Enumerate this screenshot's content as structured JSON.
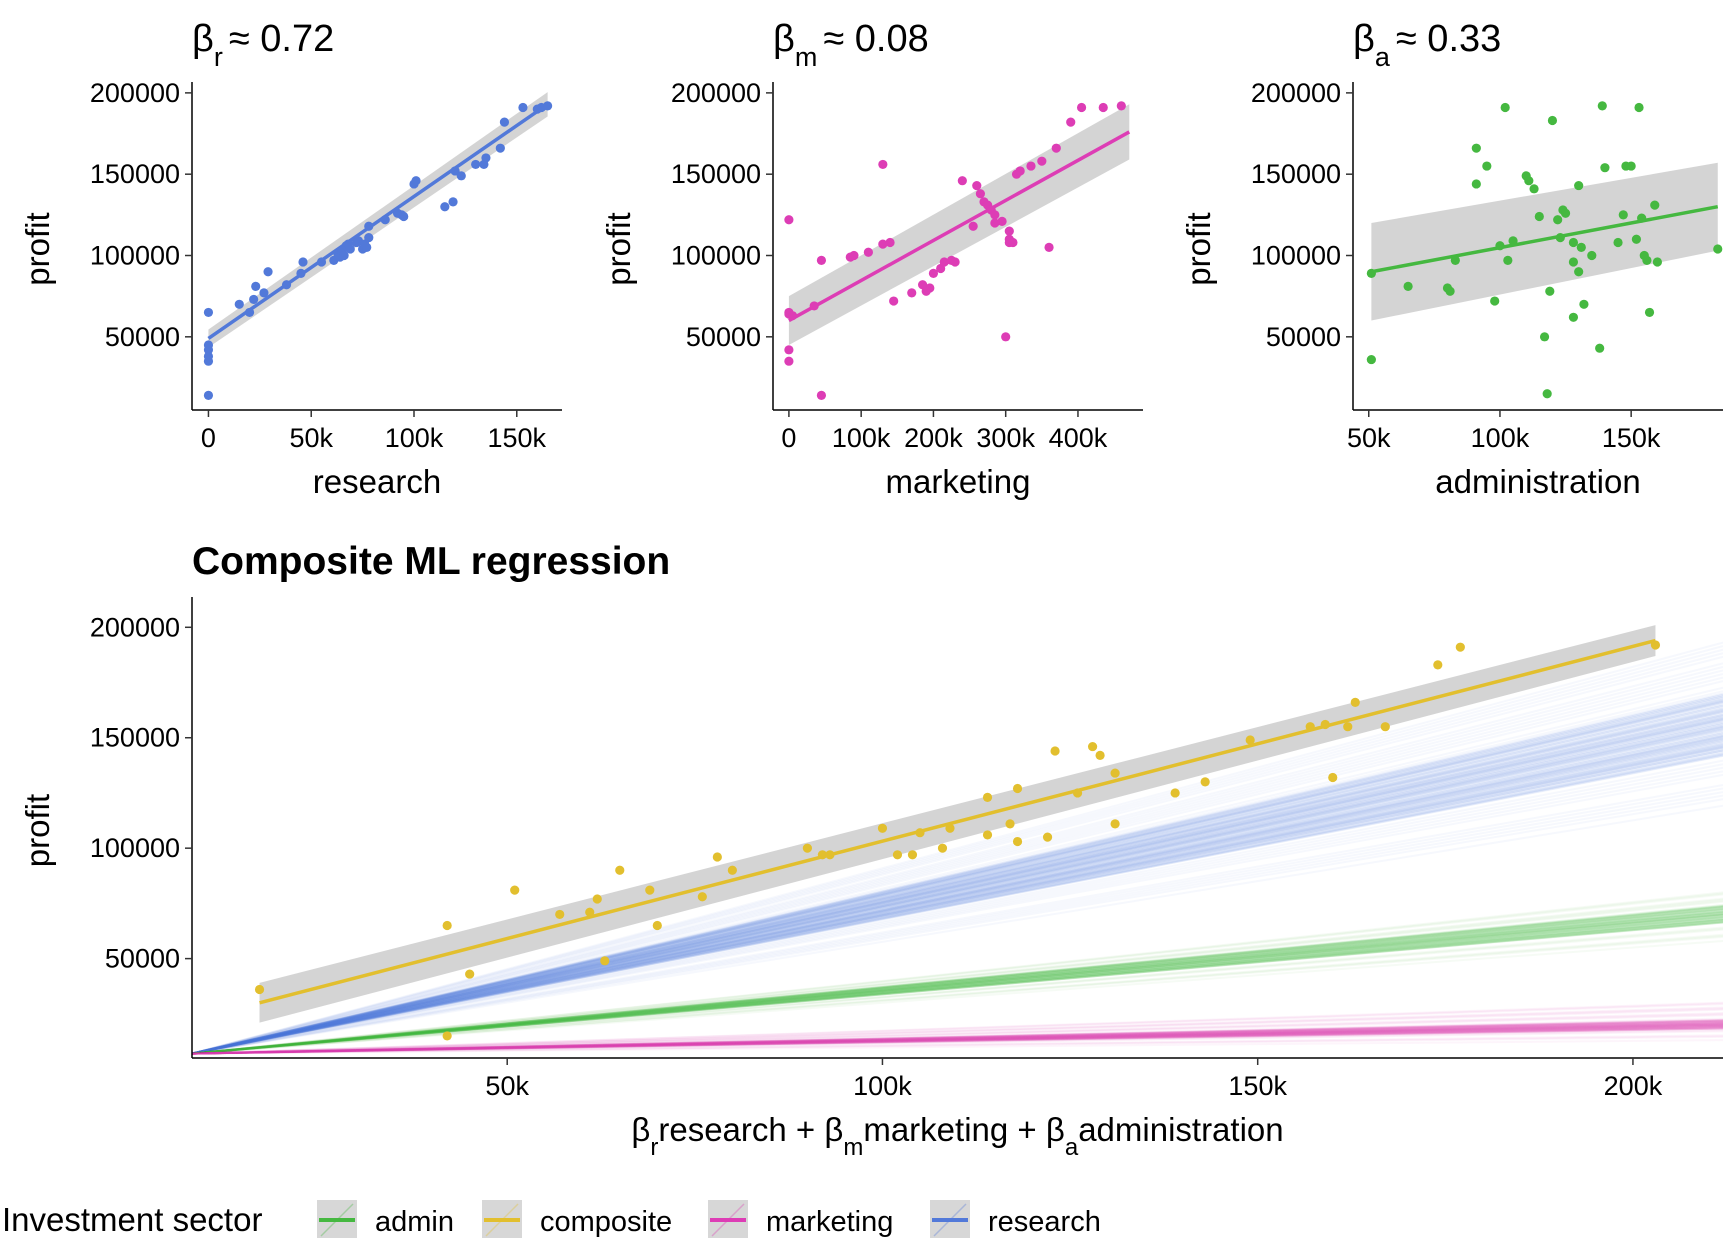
{
  "colors": {
    "research": "#5279D9",
    "marketing": "#DD3DB5",
    "admin": "#45B840",
    "composite": "#E2BF2E",
    "band": "#bdbdbd"
  },
  "chart_data": [
    {
      "type": "scatter",
      "panel": "research",
      "title_sym": "β",
      "title_sub": "r",
      "title_val": "≈ 0.72",
      "xlabel": "research",
      "ylabel": "profit",
      "xlim": [
        -8000,
        172000
      ],
      "ylim": [
        5000,
        203000
      ],
      "xticks": [
        {
          "v": 0,
          "label": "0"
        },
        {
          "v": 50000,
          "label": "50k"
        },
        {
          "v": 100000,
          "label": "100k"
        },
        {
          "v": 150000,
          "label": "150k"
        }
      ],
      "yticks": [
        {
          "v": 50000,
          "label": "50000"
        },
        {
          "v": 100000,
          "label": "100000"
        },
        {
          "v": 150000,
          "label": "150000"
        },
        {
          "v": 200000,
          "label": "200000"
        }
      ],
      "color_key": "research",
      "fit": {
        "x0": 0,
        "y0": 49000,
        "x1": 165000,
        "y1": 193000,
        "band0": 5500,
        "band1": 7500
      },
      "points": [
        [
          0,
          14000
        ],
        [
          0,
          35000
        ],
        [
          0,
          38000
        ],
        [
          0,
          42000
        ],
        [
          0,
          45000
        ],
        [
          0,
          65000
        ],
        [
          15000,
          70000
        ],
        [
          20000,
          65000
        ],
        [
          22000,
          73000
        ],
        [
          23000,
          81000
        ],
        [
          27000,
          77000
        ],
        [
          29000,
          90000
        ],
        [
          38000,
          82000
        ],
        [
          46000,
          96000
        ],
        [
          45000,
          89000
        ],
        [
          55000,
          96000
        ],
        [
          61000,
          97000
        ],
        [
          63000,
          101000
        ],
        [
          64000,
          99000
        ],
        [
          65000,
          103000
        ],
        [
          66000,
          100000
        ],
        [
          67000,
          106000
        ],
        [
          68000,
          107000
        ],
        [
          69000,
          104000
        ],
        [
          72000,
          108000
        ],
        [
          73000,
          109000
        ],
        [
          75000,
          104000
        ],
        [
          76000,
          107000
        ],
        [
          77000,
          105000
        ],
        [
          78000,
          111000
        ],
        [
          78000,
          118000
        ],
        [
          86000,
          122000
        ],
        [
          92000,
          126000
        ],
        [
          94000,
          125000
        ],
        [
          95000,
          124000
        ],
        [
          100000,
          144000
        ],
        [
          101000,
          146000
        ],
        [
          115000,
          130000
        ],
        [
          119000,
          133000
        ],
        [
          120000,
          152000
        ],
        [
          123000,
          149000
        ],
        [
          130000,
          156000
        ],
        [
          134000,
          156000
        ],
        [
          142000,
          166000
        ],
        [
          144000,
          182000
        ],
        [
          153000,
          191000
        ],
        [
          162000,
          191000
        ],
        [
          165000,
          192000
        ],
        [
          160000,
          190000
        ],
        [
          135000,
          160000
        ]
      ]
    },
    {
      "type": "scatter",
      "panel": "marketing",
      "title_sym": "β",
      "title_sub": "m",
      "title_val": "≈ 0.08",
      "xlabel": "marketing",
      "ylabel": "profit",
      "xlim": [
        -22000,
        490000
      ],
      "ylim": [
        5000,
        203000
      ],
      "xticks": [
        {
          "v": 0,
          "label": "0"
        },
        {
          "v": 100000,
          "label": "100k"
        },
        {
          "v": 200000,
          "label": "200k"
        },
        {
          "v": 300000,
          "label": "300k"
        },
        {
          "v": 400000,
          "label": "400k"
        }
      ],
      "yticks": [
        {
          "v": 50000,
          "label": "50000"
        },
        {
          "v": 100000,
          "label": "100000"
        },
        {
          "v": 150000,
          "label": "150000"
        },
        {
          "v": 200000,
          "label": "200000"
        }
      ],
      "color_key": "marketing",
      "fit": {
        "x0": 0,
        "y0": 60000,
        "x1": 471000,
        "y1": 176000,
        "band0": 15000,
        "band1": 17000
      },
      "points": [
        [
          0,
          122000
        ],
        [
          0,
          65000
        ],
        [
          0,
          42000
        ],
        [
          0,
          35000
        ],
        [
          0,
          64000
        ],
        [
          5000,
          63000
        ],
        [
          35000,
          69000
        ],
        [
          45000,
          14000
        ],
        [
          45000,
          97000
        ],
        [
          85000,
          99000
        ],
        [
          90000,
          100000
        ],
        [
          110000,
          102000
        ],
        [
          130000,
          107000
        ],
        [
          140000,
          108000
        ],
        [
          130000,
          156000
        ],
        [
          145000,
          72000
        ],
        [
          170000,
          77000
        ],
        [
          185000,
          82000
        ],
        [
          195000,
          80000
        ],
        [
          190000,
          78000
        ],
        [
          200000,
          89000
        ],
        [
          210000,
          92000
        ],
        [
          215000,
          96000
        ],
        [
          225000,
          97000
        ],
        [
          230000,
          96000
        ],
        [
          240000,
          146000
        ],
        [
          260000,
          143000
        ],
        [
          265000,
          138000
        ],
        [
          270000,
          133000
        ],
        [
          275000,
          131000
        ],
        [
          280000,
          128000
        ],
        [
          285000,
          120000
        ],
        [
          285000,
          125000
        ],
        [
          295000,
          121000
        ],
        [
          305000,
          110000
        ],
        [
          305000,
          108000
        ],
        [
          310000,
          108000
        ],
        [
          315000,
          150000
        ],
        [
          320000,
          152000
        ],
        [
          335000,
          155000
        ],
        [
          300000,
          50000
        ],
        [
          360000,
          105000
        ],
        [
          370000,
          166000
        ],
        [
          390000,
          182000
        ],
        [
          405000,
          191000
        ],
        [
          435000,
          191000
        ],
        [
          460000,
          192000
        ],
        [
          305000,
          115000
        ],
        [
          255000,
          118000
        ],
        [
          350000,
          158000
        ]
      ]
    },
    {
      "type": "scatter",
      "panel": "admin",
      "title_sym": "β",
      "title_sub": "a",
      "title_val": "≈ 0.33",
      "xlabel": "administration",
      "ylabel": "profit",
      "xlim": [
        44000,
        185000
      ],
      "ylim": [
        5000,
        203000
      ],
      "xticks": [
        {
          "v": 50000,
          "label": "50k"
        },
        {
          "v": 100000,
          "label": "100k"
        },
        {
          "v": 150000,
          "label": "150k"
        }
      ],
      "yticks": [
        {
          "v": 50000,
          "label": "50000"
        },
        {
          "v": 100000,
          "label": "100000"
        },
        {
          "v": 150000,
          "label": "150000"
        },
        {
          "v": 200000,
          "label": "200000"
        }
      ],
      "color_key": "admin",
      "fit": {
        "x0": 51000,
        "y0": 90000,
        "x1": 183000,
        "y1": 130000,
        "band0": 30000,
        "band1": 27000
      },
      "points": [
        [
          51000,
          36000
        ],
        [
          51000,
          89000
        ],
        [
          65000,
          81000
        ],
        [
          80000,
          80000
        ],
        [
          81000,
          78000
        ],
        [
          83000,
          97000
        ],
        [
          91000,
          166000
        ],
        [
          91000,
          144000
        ],
        [
          95000,
          155000
        ],
        [
          98000,
          72000
        ],
        [
          100000,
          106000
        ],
        [
          102000,
          191000
        ],
        [
          103000,
          97000
        ],
        [
          105000,
          109000
        ],
        [
          110000,
          149000
        ],
        [
          111000,
          146000
        ],
        [
          113000,
          141000
        ],
        [
          115000,
          124000
        ],
        [
          117000,
          50000
        ],
        [
          118000,
          15000
        ],
        [
          120000,
          183000
        ],
        [
          119000,
          78000
        ],
        [
          122000,
          122000
        ],
        [
          123000,
          111000
        ],
        [
          124000,
          128000
        ],
        [
          125000,
          126000
        ],
        [
          128000,
          108000
        ],
        [
          128000,
          96000
        ],
        [
          130000,
          90000
        ],
        [
          131000,
          105000
        ],
        [
          132000,
          70000
        ],
        [
          128000,
          62000
        ],
        [
          135000,
          100000
        ],
        [
          138000,
          43000
        ],
        [
          139000,
          192000
        ],
        [
          140000,
          154000
        ],
        [
          145000,
          108000
        ],
        [
          147000,
          125000
        ],
        [
          148000,
          155000
        ],
        [
          150000,
          155000
        ],
        [
          152000,
          110000
        ],
        [
          153000,
          191000
        ],
        [
          154000,
          123000
        ],
        [
          155000,
          100000
        ],
        [
          156000,
          97000
        ],
        [
          157000,
          65000
        ],
        [
          160000,
          96000
        ],
        [
          159000,
          131000
        ],
        [
          183000,
          104000
        ],
        [
          130000,
          143000
        ]
      ]
    },
    {
      "type": "scatter",
      "panel": "composite",
      "title": "Composite ML regression",
      "xlabel_parts": [
        {
          "t": "β"
        },
        {
          "t": "r",
          "sub": true
        },
        {
          "t": "research + "
        },
        {
          "t": "β"
        },
        {
          "t": "m",
          "sub": true
        },
        {
          "t": "marketing + "
        },
        {
          "t": "β"
        },
        {
          "t": "a",
          "sub": true
        },
        {
          "t": "administration"
        }
      ],
      "ylabel": "profit",
      "xlim": [
        8000,
        212000
      ],
      "ylim": [
        5000,
        211000
      ],
      "xticks": [
        {
          "v": 50000,
          "label": "50k"
        },
        {
          "v": 100000,
          "label": "100k"
        },
        {
          "v": 150000,
          "label": "150k"
        },
        {
          "v": 200000,
          "label": "200k"
        }
      ],
      "yticks": [
        {
          "v": 50000,
          "label": "50000"
        },
        {
          "v": 100000,
          "label": "100000"
        },
        {
          "v": 150000,
          "label": "150000"
        },
        {
          "v": 200000,
          "label": "200000"
        }
      ],
      "color_key": "composite",
      "fit": {
        "x0": 17000,
        "y0": 30000,
        "x1": 203000,
        "y1": 194000,
        "band0": 9000,
        "band1": 7000
      },
      "origin": [
        8000,
        7000
      ],
      "draw_lines": [
        {
          "key": "research",
          "slope_min": 0.55,
          "slope_max": 0.92,
          "core_min": 0.66,
          "core_max": 0.8,
          "count": 110
        },
        {
          "key": "admin",
          "slope_min": 0.25,
          "slope_max": 0.36,
          "core_min": 0.29,
          "core_max": 0.33,
          "count": 70
        },
        {
          "key": "marketing",
          "slope_min": 0.03,
          "slope_max": 0.115,
          "core_min": 0.055,
          "core_max": 0.075,
          "count": 70
        }
      ],
      "points": [
        [
          17000,
          36000
        ],
        [
          42000,
          65000
        ],
        [
          42000,
          15000
        ],
        [
          45000,
          43000
        ],
        [
          51000,
          81000
        ],
        [
          57000,
          70000
        ],
        [
          61000,
          71000
        ],
        [
          62000,
          77000
        ],
        [
          63000,
          49000
        ],
        [
          65000,
          90000
        ],
        [
          69000,
          81000
        ],
        [
          70000,
          65000
        ],
        [
          76000,
          78000
        ],
        [
          78000,
          96000
        ],
        [
          80000,
          90000
        ],
        [
          90000,
          100000
        ],
        [
          92000,
          97000
        ],
        [
          93000,
          97000
        ],
        [
          100000,
          109000
        ],
        [
          102000,
          97000
        ],
        [
          104000,
          97000
        ],
        [
          105000,
          107000
        ],
        [
          108000,
          100000
        ],
        [
          109000,
          109000
        ],
        [
          114000,
          106000
        ],
        [
          114000,
          123000
        ],
        [
          117000,
          111000
        ],
        [
          118000,
          103000
        ],
        [
          118000,
          127000
        ],
        [
          122000,
          105000
        ],
        [
          123000,
          144000
        ],
        [
          126000,
          125000
        ],
        [
          128000,
          146000
        ],
        [
          129000,
          142000
        ],
        [
          131000,
          134000
        ],
        [
          131000,
          111000
        ],
        [
          139000,
          125000
        ],
        [
          143000,
          130000
        ],
        [
          149000,
          149000
        ],
        [
          157000,
          155000
        ],
        [
          159000,
          156000
        ],
        [
          160000,
          132000
        ],
        [
          162000,
          155000
        ],
        [
          163000,
          166000
        ],
        [
          167000,
          155000
        ],
        [
          174000,
          183000
        ],
        [
          177000,
          191000
        ],
        [
          203000,
          192000
        ]
      ]
    }
  ],
  "legend": {
    "title": "Investment sector",
    "items": [
      {
        "key": "admin",
        "label": "admin"
      },
      {
        "key": "composite",
        "label": "composite"
      },
      {
        "key": "marketing",
        "label": "marketing"
      },
      {
        "key": "research",
        "label": "research"
      }
    ]
  }
}
